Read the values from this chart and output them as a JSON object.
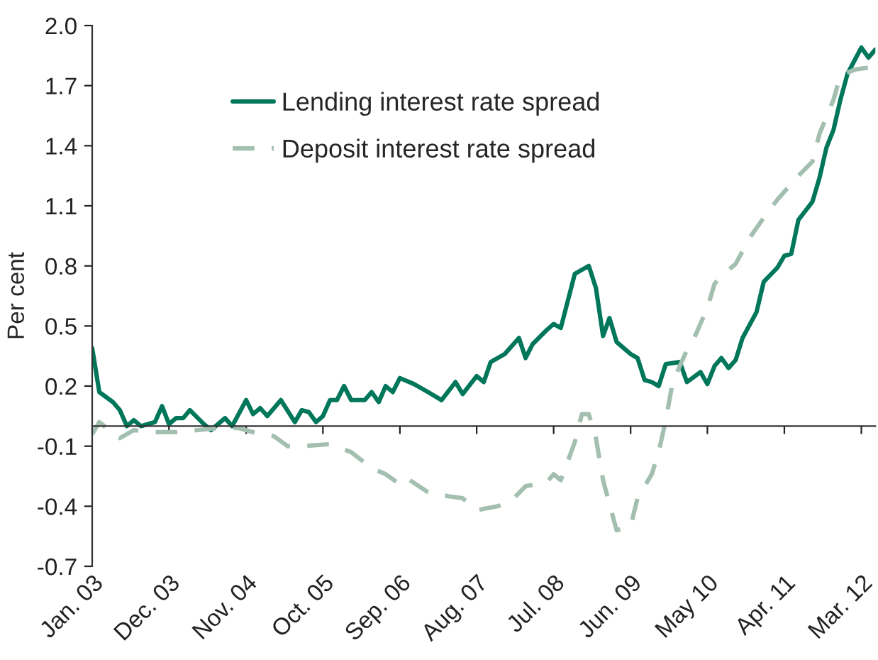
{
  "chart_data": {
    "type": "line",
    "ylabel": "Per cent",
    "xlim": [
      "2003-01",
      "2012-05"
    ],
    "xticks": [
      {
        "value": "2003-01",
        "label": "Jan. 03"
      },
      {
        "value": "2003-12",
        "label": "Dec. 03"
      },
      {
        "value": "2004-11",
        "label": "Nov. 04"
      },
      {
        "value": "2005-10",
        "label": "Oct. 05"
      },
      {
        "value": "2006-09",
        "label": "Sep. 06"
      },
      {
        "value": "2007-08",
        "label": "Aug. 07"
      },
      {
        "value": "2008-07",
        "label": "Jul. 08"
      },
      {
        "value": "2009-06",
        "label": "Jun. 09"
      },
      {
        "value": "2010-05",
        "label": "May 10"
      },
      {
        "value": "2011-04",
        "label": "Apr. 11"
      },
      {
        "value": "2012-03",
        "label": "Mar. 12"
      }
    ],
    "ylim": [
      -0.7,
      2.0
    ],
    "yticks": [
      -0.7,
      -0.4,
      -0.1,
      0.2,
      0.5,
      0.8,
      1.1,
      1.4,
      1.7,
      {
        "value": 2.0,
        "label": "2.0"
      }
    ],
    "grid": false,
    "legend": "top left",
    "marker": "none",
    "series": [
      {
        "name": "Lending interest rate spread",
        "color": "#00765a",
        "line_style": "solid",
        "x": [
          "2003-01",
          "2003-02",
          "2003-04",
          "2003-05",
          "2003-06",
          "2003-07",
          "2003-08",
          "2003-10",
          "2003-11",
          "2003-12",
          "2004-01",
          "2004-02",
          "2004-03",
          "2004-05",
          "2004-06",
          "2004-08",
          "2004-09",
          "2004-11",
          "2004-12",
          "2005-01",
          "2005-02",
          "2005-04",
          "2005-06",
          "2005-07",
          "2005-08",
          "2005-09",
          "2005-10",
          "2005-11",
          "2005-12",
          "2006-01",
          "2006-02",
          "2006-04",
          "2006-05",
          "2006-06",
          "2006-07",
          "2006-08",
          "2006-09",
          "2006-11",
          "2007-01",
          "2007-03",
          "2007-05",
          "2007-06",
          "2007-08",
          "2007-09",
          "2007-10",
          "2007-12",
          "2008-02",
          "2008-03",
          "2008-04",
          "2008-06",
          "2008-07",
          "2008-08",
          "2008-10",
          "2008-12",
          "2009-01",
          "2009-02",
          "2009-03",
          "2009-04",
          "2009-06",
          "2009-07",
          "2009-08",
          "2009-09",
          "2009-10",
          "2009-11",
          "2010-01",
          "2010-02",
          "2010-04",
          "2010-05",
          "2010-06",
          "2010-07",
          "2010-08",
          "2010-09",
          "2010-10",
          "2010-12",
          "2011-01",
          "2011-03",
          "2011-04",
          "2011-05",
          "2011-06",
          "2011-08",
          "2011-09",
          "2011-10",
          "2011-11",
          "2011-12",
          "2012-01",
          "2012-03",
          "2012-04",
          "2012-05"
        ],
        "values": [
          0.39,
          0.17,
          0.12,
          0.08,
          0.0,
          0.03,
          0.0,
          0.02,
          0.1,
          0.01,
          0.04,
          0.04,
          0.08,
          0.01,
          -0.02,
          0.04,
          0.0,
          0.13,
          0.06,
          0.09,
          0.05,
          0.13,
          0.02,
          0.08,
          0.07,
          0.02,
          0.05,
          0.13,
          0.13,
          0.2,
          0.13,
          0.13,
          0.17,
          0.12,
          0.2,
          0.17,
          0.24,
          0.21,
          0.17,
          0.13,
          0.22,
          0.16,
          0.25,
          0.22,
          0.32,
          0.36,
          0.44,
          0.34,
          0.41,
          0.48,
          0.51,
          0.49,
          0.76,
          0.8,
          0.69,
          0.45,
          0.54,
          0.42,
          0.36,
          0.34,
          0.23,
          0.22,
          0.2,
          0.31,
          0.32,
          0.22,
          0.27,
          0.21,
          0.3,
          0.34,
          0.29,
          0.33,
          0.44,
          0.57,
          0.72,
          0.79,
          0.85,
          0.86,
          1.03,
          1.12,
          1.24,
          1.39,
          1.48,
          1.63,
          1.76,
          1.89,
          1.84,
          1.88
        ]
      },
      {
        "name": "Deposit interest rate spread",
        "color": "#a3bfb0",
        "line_style": "dashed",
        "x": [
          "2003-01",
          "2003-02",
          "2003-05",
          "2003-07",
          "2003-10",
          "2004-01",
          "2004-07",
          "2004-10",
          "2005-01",
          "2005-03",
          "2005-05",
          "2005-07",
          "2005-11",
          "2006-02",
          "2006-05",
          "2006-07",
          "2006-09",
          "2006-10",
          "2007-01",
          "2007-04",
          "2007-06",
          "2007-08",
          "2007-11",
          "2008-01",
          "2008-03",
          "2008-06",
          "2008-07",
          "2008-08",
          "2008-10",
          "2008-11",
          "2008-12",
          "2009-01",
          "2009-02",
          "2009-04",
          "2009-06",
          "2009-07",
          "2009-09",
          "2009-10",
          "2009-11",
          "2009-12",
          "2010-02",
          "2010-03",
          "2010-05",
          "2010-06",
          "2010-07",
          "2010-09",
          "2010-11",
          "2011-01",
          "2011-03",
          "2011-06",
          "2011-08",
          "2011-09",
          "2011-11",
          "2011-12",
          "2012-02",
          "2012-04",
          "2012-05"
        ],
        "values": [
          -0.04,
          0.02,
          -0.06,
          -0.02,
          -0.03,
          -0.03,
          -0.01,
          -0.01,
          -0.04,
          -0.05,
          -0.1,
          -0.1,
          -0.09,
          -0.13,
          -0.21,
          -0.24,
          -0.29,
          -0.26,
          -0.33,
          -0.35,
          -0.36,
          -0.42,
          -0.4,
          -0.37,
          -0.3,
          -0.28,
          -0.24,
          -0.27,
          -0.08,
          0.06,
          0.06,
          -0.06,
          -0.27,
          -0.52,
          -0.5,
          -0.36,
          -0.24,
          -0.13,
          0.03,
          0.22,
          0.38,
          0.43,
          0.59,
          0.71,
          0.75,
          0.81,
          0.94,
          1.04,
          1.13,
          1.25,
          1.32,
          1.46,
          1.63,
          1.75,
          1.78,
          1.79,
          1.76
        ]
      }
    ]
  }
}
